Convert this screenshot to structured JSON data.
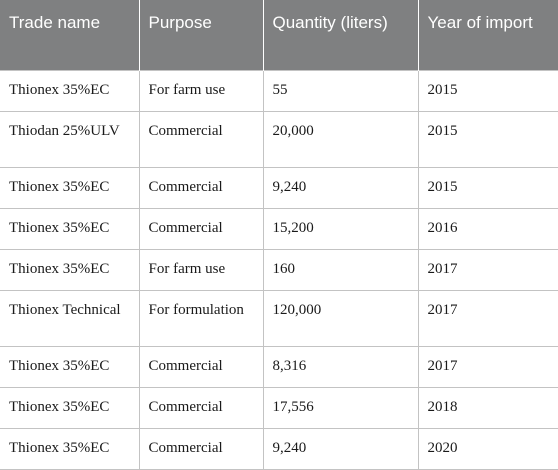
{
  "table": {
    "columns": [
      "Trade name",
      "Purpose",
      "Quantity (liters)",
      "Year of import"
    ],
    "rows": [
      {
        "trade_name": "Thionex 35%EC",
        "purpose": "For farm use",
        "quantity": "55",
        "year": "2015"
      },
      {
        "trade_name": "Thiodan 25%ULV",
        "purpose": "Commercial",
        "quantity": "20,000",
        "year": "2015"
      },
      {
        "trade_name": "Thionex 35%EC",
        "purpose": "Commercial",
        "quantity": "9,240",
        "year": "2015"
      },
      {
        "trade_name": "Thionex 35%EC",
        "purpose": "Commercial",
        "quantity": "15,200",
        "year": "2016"
      },
      {
        "trade_name": "Thionex 35%EC",
        "purpose": "For farm use",
        "quantity": "160",
        "year": "2017"
      },
      {
        "trade_name": "Thionex Technical",
        "purpose": "For formulation",
        "quantity": "120,000",
        "year": "2017"
      },
      {
        "trade_name": "Thionex 35%EC",
        "purpose": "Commercial",
        "quantity": "8,316",
        "year": "2017"
      },
      {
        "trade_name": "Thionex 35%EC",
        "purpose": "Commercial",
        "quantity": "17,556",
        "year": "2018"
      },
      {
        "trade_name": "Thionex 35%EC",
        "purpose": "Commercial",
        "quantity": "9,240",
        "year": "2020"
      }
    ]
  }
}
